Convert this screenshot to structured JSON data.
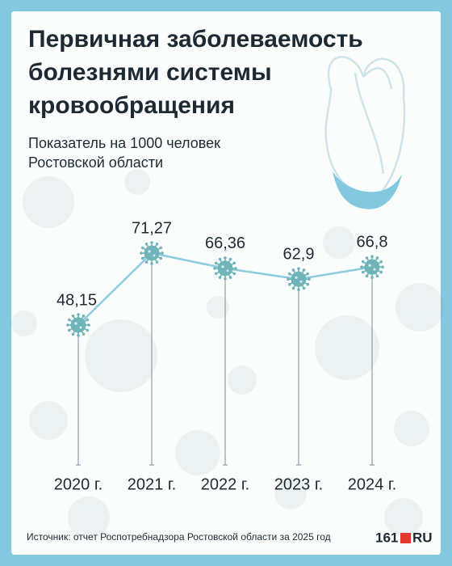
{
  "chart_data": {
    "type": "line",
    "title": [
      "Первичная заболеваемость",
      "болезнями системы",
      "кровообращения"
    ],
    "subtitle": [
      "Показатель на 1000 человек",
      "Ростовской области"
    ],
    "categories": [
      "2020 г.",
      "2021 г.",
      "2022 г.",
      "2023 г.",
      "2024 г."
    ],
    "values": [
      48.15,
      71.27,
      66.36,
      62.9,
      66.8
    ],
    "value_labels": [
      "48,15",
      "71,27",
      "66,36",
      "62,9",
      "66,8"
    ],
    "color": "#8ccbde",
    "marker_color": "#6fb4b9",
    "source": "Источник: отчет Роспотребнадзора Ростовской области за 2025 год",
    "brand": {
      "number": "161",
      "domain": "RU"
    }
  }
}
